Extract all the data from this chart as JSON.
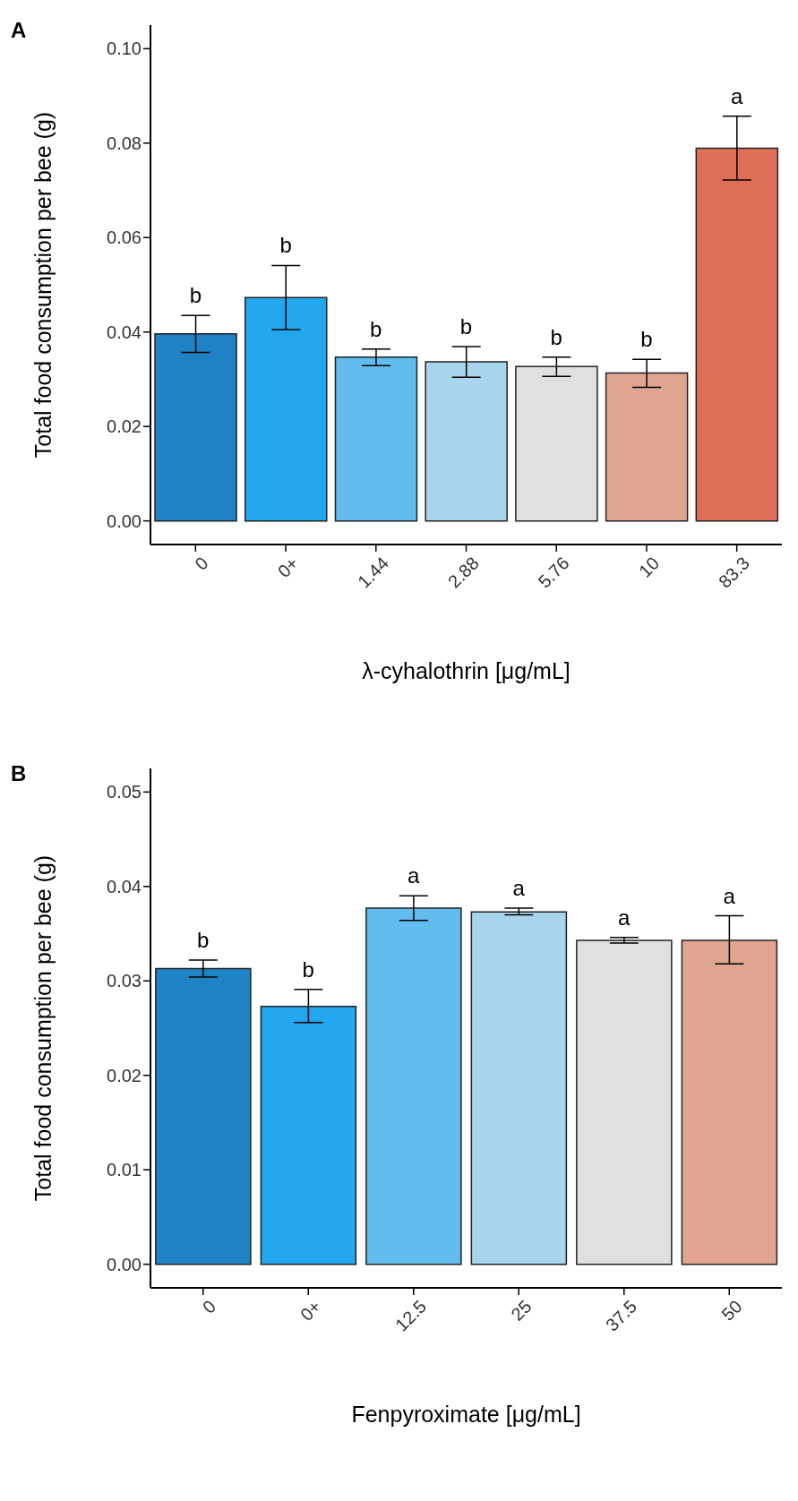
{
  "chart_data": [
    {
      "type": "bar",
      "xlabel": "λ-cyhalothrin [μg/mL]",
      "ylabel": "Total food consumption per bee (g)",
      "categories": [
        "0",
        "0+",
        "1.44",
        "2.88",
        "5.76",
        "10",
        "83.3"
      ],
      "values": [
        0.0396,
        0.0473,
        0.0347,
        0.0337,
        0.0327,
        0.0313,
        0.0789
      ],
      "errors": [
        [
          0.0357,
          0.0435
        ],
        [
          0.0405,
          0.0541
        ],
        [
          0.0329,
          0.0364
        ],
        [
          0.0304,
          0.0369
        ],
        [
          0.0306,
          0.0347
        ],
        [
          0.0283,
          0.0342
        ],
        [
          0.0722,
          0.0857
        ]
      ],
      "colors": [
        "#1f82c4",
        "#22a6ee",
        "#62bcee",
        "#a8d4ec",
        "#e0e0e0",
        "#e0a590",
        "#df6e56"
      ],
      "ylim": [
        -0.005,
        0.105
      ],
      "yticks": [
        {
          "value": 0,
          "label": "0.00"
        },
        {
          "value": 0.02,
          "label": "0.02"
        },
        {
          "value": 0.04,
          "label": "0.04"
        },
        {
          "value": 0.06,
          "label": "0.06"
        },
        {
          "value": 0.08,
          "label": "0.08"
        },
        {
          "value": 0.1,
          "label": "0.10"
        }
      ],
      "grid": false,
      "legend": false,
      "annotations": [
        "A",
        {
          "text": "b",
          "x": "0",
          "y": 0.0435
        },
        {
          "text": "b",
          "x": "0+",
          "y": 0.0541
        },
        {
          "text": "b",
          "x": "1.44",
          "y": 0.0364
        },
        {
          "text": "b",
          "x": "2.88",
          "y": 0.0369
        },
        {
          "text": "b",
          "x": "5.76",
          "y": 0.0347
        },
        {
          "text": "b",
          "x": "10",
          "y": 0.0342
        },
        {
          "text": "a",
          "x": "83.3",
          "y": 0.0857
        }
      ]
    },
    {
      "type": "bar",
      "xlabel": "Fenpyroximate [μg/mL]",
      "ylabel": "Total food consumption per bee (g)",
      "categories": [
        "0",
        "0+",
        "12.5",
        "25",
        "37.5",
        "50"
      ],
      "values": [
        0.0313,
        0.0273,
        0.0377,
        0.0373,
        0.0343,
        0.0343
      ],
      "errors": [
        [
          0.0304,
          0.0322
        ],
        [
          0.0256,
          0.0291
        ],
        [
          0.0364,
          0.039
        ],
        [
          0.037,
          0.0377
        ],
        [
          0.034,
          0.0346
        ],
        [
          0.0318,
          0.0369
        ]
      ],
      "colors": [
        "#1f82c4",
        "#22a6ee",
        "#62bcee",
        "#a8d4ec",
        "#e0e0e0",
        "#e0a590"
      ],
      "ylim": [
        -0.0025,
        0.0525
      ],
      "yticks": [
        {
          "value": 0,
          "label": "0.00"
        },
        {
          "value": 0.01,
          "label": "0.01"
        },
        {
          "value": 0.02,
          "label": "0.02"
        },
        {
          "value": 0.03,
          "label": "0.03"
        },
        {
          "value": 0.04,
          "label": "0.04"
        },
        {
          "value": 0.05,
          "label": "0.05"
        }
      ],
      "grid": false,
      "legend": false,
      "annotations": [
        "B",
        {
          "text": "b",
          "x": "0",
          "y": 0.0322
        },
        {
          "text": "b",
          "x": "0+",
          "y": 0.0291
        },
        {
          "text": "a",
          "x": "12.5",
          "y": 0.039
        },
        {
          "text": "a",
          "x": "25",
          "y": 0.0377
        },
        {
          "text": "a",
          "x": "37.5",
          "y": 0.0346
        },
        {
          "text": "a",
          "x": "50",
          "y": 0.0369
        }
      ]
    }
  ]
}
